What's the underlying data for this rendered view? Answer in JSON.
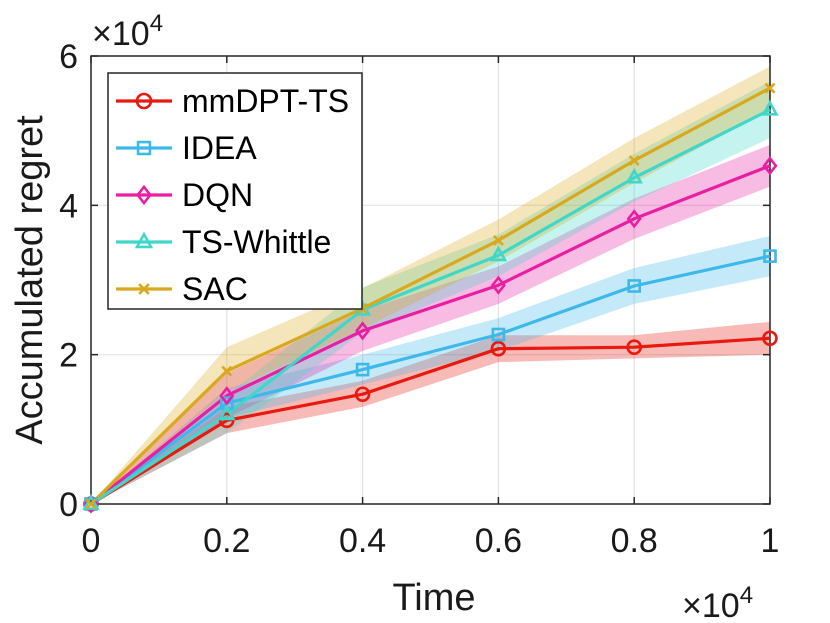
{
  "chart_data": {
    "type": "line",
    "xlabel": "Time",
    "ylabel": "Accumulated regret",
    "x_exponent": {
      "base": "×10",
      "power": "4"
    },
    "y_exponent": {
      "base": "×10",
      "power": "4"
    },
    "xlim": [
      0,
      1
    ],
    "ylim": [
      0,
      6
    ],
    "xticks": [
      0,
      0.2,
      0.4,
      0.6,
      0.8,
      1
    ],
    "xtick_labels": [
      "0",
      "0.2",
      "0.4",
      "0.6",
      "0.8",
      "1"
    ],
    "yticks": [
      0,
      2,
      4,
      6
    ],
    "ytick_labels": [
      "0",
      "2",
      "4",
      "6"
    ],
    "grid": true,
    "legend_position": "top-left",
    "x": [
      0,
      0.2,
      0.4,
      0.6,
      0.8,
      1
    ],
    "series": [
      {
        "name": "mmDPT-TS",
        "marker": "circle",
        "color": "#e8190f",
        "values": [
          0,
          1.12,
          1.47,
          2.08,
          2.1,
          2.22
        ],
        "lower": [
          0,
          0.95,
          1.3,
          1.9,
          1.95,
          2.0
        ],
        "upper": [
          0,
          1.3,
          1.65,
          2.26,
          2.26,
          2.44
        ]
      },
      {
        "name": "IDEA",
        "marker": "square",
        "color": "#3db8ea",
        "values": [
          0,
          1.35,
          1.8,
          2.27,
          2.92,
          3.32
        ],
        "lower": [
          0,
          1.15,
          1.6,
          2.05,
          2.68,
          3.05
        ],
        "upper": [
          0,
          1.55,
          2.0,
          2.49,
          3.16,
          3.59
        ]
      },
      {
        "name": "DQN",
        "marker": "diamond",
        "color": "#e91fa2",
        "values": [
          0,
          1.45,
          2.32,
          2.93,
          3.82,
          4.53
        ],
        "lower": [
          0,
          1.15,
          2.05,
          2.68,
          3.55,
          4.25
        ],
        "upper": [
          0,
          1.75,
          2.59,
          3.18,
          4.09,
          4.81
        ]
      },
      {
        "name": "TS-Whittle",
        "marker": "triangle",
        "color": "#3fd7c9",
        "values": [
          0,
          1.2,
          2.6,
          3.33,
          4.37,
          5.28
        ],
        "lower": [
          0,
          0.95,
          2.3,
          3.05,
          4.05,
          4.9
        ],
        "upper": [
          0,
          1.45,
          2.9,
          3.61,
          4.69,
          5.66
        ]
      },
      {
        "name": "SAC",
        "marker": "x",
        "color": "#d9a81c",
        "values": [
          0,
          1.78,
          2.62,
          3.53,
          4.6,
          5.57
        ],
        "lower": [
          0,
          1.5,
          2.35,
          3.25,
          4.3,
          5.28
        ],
        "upper": [
          0,
          2.1,
          2.89,
          3.81,
          4.9,
          5.86
        ]
      }
    ]
  }
}
